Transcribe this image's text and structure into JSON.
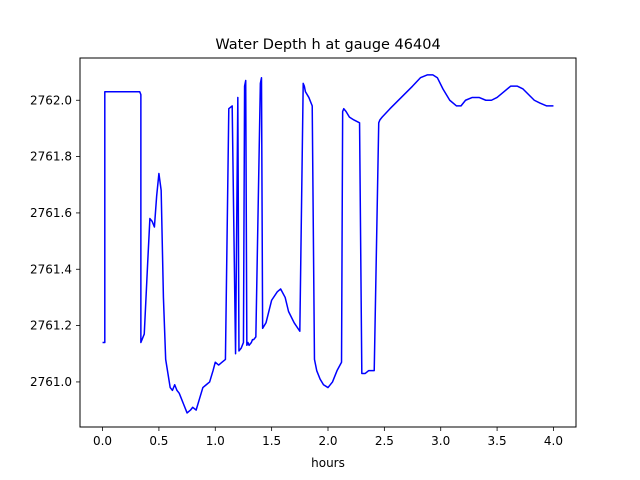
{
  "chart_data": {
    "type": "line",
    "title": "Water Depth h at gauge 46404",
    "xlabel": "hours",
    "ylabel": "",
    "xlim": [
      -0.2,
      4.2
    ],
    "ylim": [
      2760.84,
      2762.15
    ],
    "x_ticks": [
      0.0,
      0.5,
      1.0,
      1.5,
      2.0,
      2.5,
      3.0,
      3.5,
      4.0
    ],
    "x_tick_labels": [
      "0.0",
      "0.5",
      "1.0",
      "1.5",
      "2.0",
      "2.5",
      "3.0",
      "3.5",
      "4.0"
    ],
    "y_ticks": [
      2761.0,
      2761.2,
      2761.4,
      2761.6,
      2761.8,
      2762.0
    ],
    "y_tick_labels": [
      "2761.0",
      "2761.2",
      "2761.4",
      "2761.6",
      "2761.8",
      "2762.0"
    ],
    "grid": false,
    "series": [
      {
        "color": "#0000ff",
        "x": [
          0.0,
          0.02,
          0.02,
          0.33,
          0.34,
          0.34,
          0.37,
          0.4,
          0.42,
          0.44,
          0.46,
          0.48,
          0.5,
          0.52,
          0.54,
          0.56,
          0.58,
          0.6,
          0.62,
          0.64,
          0.66,
          0.68,
          0.7,
          0.72,
          0.75,
          0.78,
          0.8,
          0.83,
          0.86,
          0.89,
          0.92,
          0.95,
          0.98,
          1.0,
          1.03,
          1.06,
          1.09,
          1.12,
          1.15,
          1.18,
          1.2,
          1.21,
          1.23,
          1.24,
          1.25,
          1.26,
          1.27,
          1.28,
          1.29,
          1.3,
          1.32,
          1.33,
          1.34,
          1.36,
          1.4,
          1.41,
          1.42,
          1.45,
          1.5,
          1.55,
          1.58,
          1.62,
          1.65,
          1.7,
          1.75,
          1.78,
          1.79,
          1.8,
          1.83,
          1.86,
          1.88,
          1.89,
          1.9,
          1.93,
          1.96,
          2.0,
          2.04,
          2.08,
          2.12,
          2.13,
          2.14,
          2.16,
          2.19,
          2.23,
          2.28,
          2.3,
          2.31,
          2.33,
          2.36,
          2.41,
          2.45,
          2.46,
          2.48,
          2.55,
          2.65,
          2.75,
          2.82,
          2.88,
          2.93,
          2.97,
          3.02,
          3.08,
          3.14,
          3.18,
          3.22,
          3.28,
          3.34,
          3.4,
          3.45,
          3.5,
          3.56,
          3.62,
          3.68,
          3.73,
          3.78,
          3.83,
          3.88,
          3.94,
          4.0
        ],
        "y": [
          2761.14,
          2761.14,
          2762.03,
          2762.03,
          2762.02,
          2761.14,
          2761.17,
          2761.42,
          2761.58,
          2761.57,
          2761.55,
          2761.66,
          2761.74,
          2761.68,
          2761.3,
          2761.08,
          2761.03,
          2760.98,
          2760.97,
          2760.99,
          2760.97,
          2760.96,
          2760.94,
          2760.92,
          2760.89,
          2760.9,
          2760.91,
          2760.9,
          2760.94,
          2760.98,
          2760.99,
          2761.0,
          2761.04,
          2761.07,
          2761.06,
          2761.07,
          2761.08,
          2761.97,
          2761.98,
          2761.1,
          2762.01,
          2761.11,
          2761.12,
          2761.13,
          2761.14,
          2762.05,
          2762.07,
          2761.13,
          2761.14,
          2761.13,
          2761.14,
          2761.15,
          2761.15,
          2761.16,
          2762.06,
          2762.08,
          2761.19,
          2761.21,
          2761.29,
          2761.32,
          2761.33,
          2761.3,
          2761.25,
          2761.21,
          2761.18,
          2762.06,
          2762.05,
          2762.03,
          2762.01,
          2761.98,
          2761.08,
          2761.06,
          2761.04,
          2761.01,
          2760.99,
          2760.98,
          2761.0,
          2761.04,
          2761.07,
          2761.96,
          2761.97,
          2761.96,
          2761.94,
          2761.93,
          2761.92,
          2761.03,
          2761.03,
          2761.03,
          2761.04,
          2761.04,
          2761.92,
          2761.93,
          2761.94,
          2761.97,
          2762.01,
          2762.05,
          2762.08,
          2762.09,
          2762.09,
          2762.08,
          2762.04,
          2762.0,
          2761.98,
          2761.98,
          2762.0,
          2762.01,
          2762.01,
          2762.0,
          2762.0,
          2762.01,
          2762.03,
          2762.05,
          2762.05,
          2762.04,
          2762.02,
          2762.0,
          2761.99,
          2761.98,
          2761.98
        ]
      }
    ]
  }
}
